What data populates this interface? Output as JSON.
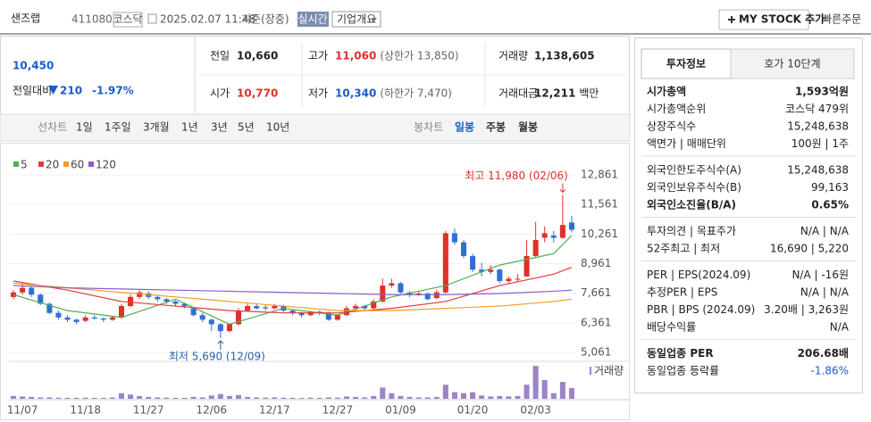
{
  "header": {
    "name": "샌즈랩",
    "code": "411080",
    "market": "코스닥",
    "datetime": "2025.02.07 11:48",
    "basis": "기준(장중)",
    "realtime": "실시간",
    "company": "기업개요",
    "mystock": "MY STOCK 추가",
    "quick_order": "빠른주문"
  },
  "price": {
    "current": "10,450",
    "change_label": "전일대비",
    "change": "210",
    "rate": "-1.97%"
  },
  "stats": [
    {
      "label": "전일",
      "value": "10,660"
    },
    {
      "label": "고가",
      "value": "11,060",
      "extra": "(상한가 13,850)"
    },
    {
      "label": "거래량",
      "value": "1,138,605"
    },
    {
      "label": "시가",
      "value": "10,770"
    },
    {
      "label": "저가",
      "value": "10,340",
      "extra": "(하한가 7,470)"
    },
    {
      "label": "거래대금",
      "value": "12,211",
      "extra": "백만"
    }
  ],
  "line_tabs": [
    "선차트",
    "1일",
    "1주일",
    "3개월",
    "1년",
    "3년",
    "5년",
    "10년"
  ],
  "candle_tabs": [
    "봉차트",
    "일봉",
    "주봉",
    "월봉"
  ],
  "chart_data": {
    "type": "candlestick",
    "categories": [
      null,
      "11/07",
      null,
      null,
      null,
      null,
      null,
      null,
      "11/18",
      null,
      null,
      null,
      null,
      null,
      null,
      "11/27",
      null,
      null,
      null,
      null,
      null,
      null,
      "12/06",
      null,
      null,
      null,
      null,
      null,
      null,
      "12/17",
      null,
      null,
      null,
      null,
      null,
      null,
      "12/27",
      null,
      null,
      null,
      null,
      null,
      null,
      "01/09",
      null,
      null,
      null,
      null,
      null,
      null,
      null,
      "01/20",
      null,
      null,
      null,
      null,
      null,
      null,
      "02/03",
      null,
      null,
      null,
      null
    ],
    "open": [
      7500,
      7700,
      7900,
      7600,
      7200,
      6800,
      6600,
      6500,
      6450,
      6600,
      6550,
      6500,
      6600,
      7100,
      7500,
      7650,
      7500,
      7400,
      7300,
      7200,
      7000,
      6700,
      6500,
      6300,
      6000,
      6300,
      6900,
      7100,
      7050,
      7000,
      7100,
      6900,
      6800,
      6700,
      6850,
      6800,
      6500,
      6700,
      7000,
      7100,
      7000,
      7300,
      8000,
      8100,
      7700,
      7600,
      7650,
      7450,
      7700,
      10300,
      9900,
      9300,
      8700,
      8600,
      8700,
      8200,
      8300,
      8400,
      9300,
      10100,
      10200,
      10100,
      10770
    ],
    "high": [
      7800,
      8100,
      7950,
      7650,
      7250,
      6900,
      6700,
      6550,
      6700,
      6700,
      6600,
      6650,
      7200,
      7600,
      7800,
      7750,
      7550,
      7450,
      7350,
      7250,
      7050,
      6800,
      6550,
      6350,
      6350,
      7000,
      7200,
      7200,
      7150,
      7200,
      7150,
      6950,
      6850,
      6900,
      6900,
      6850,
      6750,
      7100,
      7200,
      7150,
      7400,
      8300,
      8300,
      8150,
      7750,
      7750,
      7700,
      7800,
      10400,
      10500,
      10000,
      9400,
      9000,
      8900,
      8750,
      8400,
      8500,
      10000,
      10800,
      10600,
      10400,
      11980,
      11060
    ],
    "low": [
      7400,
      7600,
      7500,
      7150,
      6750,
      6500,
      6400,
      6300,
      6400,
      6500,
      6400,
      6450,
      6550,
      7050,
      7400,
      7400,
      7300,
      7200,
      7100,
      7000,
      6650,
      6400,
      6000,
      5690,
      5950,
      6250,
      6850,
      6950,
      6900,
      6950,
      6850,
      6700,
      6600,
      6650,
      6700,
      6450,
      6450,
      6650,
      6950,
      6900,
      6950,
      7250,
      7900,
      7650,
      7500,
      7550,
      7350,
      7400,
      7650,
      9800,
      9200,
      8600,
      8400,
      8500,
      8100,
      8100,
      8200,
      8400,
      9200,
      9900,
      9900,
      10050,
      10340
    ],
    "close": [
      7700,
      7900,
      7600,
      7200,
      6800,
      6600,
      6500,
      6400,
      6600,
      6550,
      6500,
      6600,
      7100,
      7500,
      7700,
      7500,
      7400,
      7300,
      7200,
      7100,
      6700,
      6500,
      6300,
      6000,
      6300,
      6900,
      7100,
      7000,
      7000,
      7100,
      6900,
      6800,
      6700,
      6850,
      6800,
      6500,
      6700,
      7000,
      7100,
      7000,
      7300,
      8000,
      8100,
      7700,
      7600,
      7650,
      7400,
      7700,
      10300,
      9900,
      9300,
      8700,
      8600,
      8700,
      8200,
      8300,
      8300,
      9300,
      10000,
      10300,
      10100,
      10660,
      10450
    ],
    "up_color": "#e0302a",
    "down_color": "#2f6fd6",
    "series": [
      {
        "name": "5",
        "color": "#4caf50",
        "x": [
          0,
          6,
          12,
          18,
          24,
          30,
          36,
          42,
          48,
          54,
          60,
          62
        ],
        "values": [
          7600,
          6900,
          6600,
          7400,
          6300,
          7000,
          6700,
          7500,
          8000,
          8900,
          9400,
          10200
        ]
      },
      {
        "name": "20",
        "color": "#e53935",
        "x": [
          0,
          6,
          12,
          18,
          24,
          30,
          36,
          42,
          48,
          54,
          60,
          62
        ],
        "values": [
          8200,
          7800,
          7300,
          7100,
          6900,
          6800,
          6800,
          7000,
          7300,
          8000,
          8500,
          8800
        ]
      },
      {
        "name": "60",
        "color": "#f59b23",
        "x": [
          0,
          6,
          12,
          18,
          24,
          30,
          36,
          42,
          48,
          54,
          60,
          62
        ],
        "values": [
          8100,
          7900,
          7700,
          7500,
          7300,
          7100,
          6900,
          6900,
          7000,
          7100,
          7300,
          7400
        ]
      },
      {
        "name": "120",
        "color": "#8e5bc9",
        "x": [
          0,
          6,
          12,
          18,
          24,
          30,
          36,
          42,
          48,
          54,
          60,
          62
        ],
        "values": [
          8000,
          7900,
          7850,
          7800,
          7750,
          7700,
          7650,
          7600,
          7600,
          7650,
          7750,
          7800
        ]
      }
    ],
    "ylim": [
      4750,
      13490
    ],
    "yticks": [
      {
        "value": 5061,
        "label": "5,061"
      },
      {
        "value": 6361,
        "label": "6,361"
      },
      {
        "value": 7661,
        "label": "7,661"
      },
      {
        "value": 8961,
        "label": "8,961"
      },
      {
        "value": 10261,
        "label": "10,261"
      },
      {
        "value": 11561,
        "label": "11,561"
      },
      {
        "value": 12861,
        "label": "12,861"
      }
    ],
    "grid": true,
    "annotations": [
      {
        "text": "최고 11,980 (02/06)",
        "index": 61,
        "value": 11980
      },
      {
        "text": "최저 5,690 (12/09)",
        "index": 23,
        "value": 5690
      }
    ],
    "volume_label": "거래량",
    "volume_color": "#9b84c6",
    "volume": [
      300000,
      250000,
      200000,
      150000,
      150000,
      120000,
      100000,
      100000,
      120000,
      100000,
      90000,
      150000,
      600000,
      450000,
      300000,
      200000,
      150000,
      120000,
      100000,
      100000,
      200000,
      150000,
      350000,
      500000,
      300000,
      400000,
      200000,
      150000,
      120000,
      150000,
      120000,
      100000,
      90000,
      120000,
      100000,
      150000,
      120000,
      250000,
      200000,
      150000,
      300000,
      1200000,
      600000,
      300000,
      200000,
      150000,
      150000,
      200000,
      1500000,
      700000,
      600000,
      700000,
      350000,
      250000,
      300000,
      250000,
      300000,
      1500000,
      3500000,
      2000000,
      600000,
      1800000,
      1138605
    ],
    "volume_ylim": [
      0,
      3800000
    ]
  },
  "info_tabs": [
    "투자정보",
    "호가 10단계"
  ],
  "info_groups": [
    [
      {
        "label": "시가총액",
        "value": "1,593억원"
      },
      {
        "label": "시가총액순위",
        "value": "코스닥 479위"
      },
      {
        "label": "상장주식수",
        "value": "15,248,638"
      },
      {
        "label": "액면가 | 매매단위",
        "value": "100원 | 1주"
      }
    ],
    [
      {
        "label": "외국인한도주식수(A)",
        "value": "15,248,638"
      },
      {
        "label": "외국인보유주식수(B)",
        "value": "99,163"
      },
      {
        "label": "외국인소진율(B/A)",
        "value": "0.65%"
      }
    ],
    [
      {
        "label": "투자의견 | 목표주가",
        "value": "N/A | N/A"
      },
      {
        "label": "52주최고 | 최저",
        "value": "16,690 | 5,220"
      }
    ],
    [
      {
        "label": "PER | EPS(2024.09)",
        "value": "N/A | -16원"
      },
      {
        "label": "추정PER | EPS",
        "value": "N/A | N/A"
      },
      {
        "label": "PBR | BPS (2024.09)",
        "value": "3.20배 | 3,263원"
      },
      {
        "label": "배당수익률",
        "value": "N/A"
      }
    ],
    [
      {
        "label": "동일업종 PER",
        "value": "206.68배"
      },
      {
        "label": "동일업종 등락률",
        "value": "-1.86%"
      }
    ]
  ]
}
